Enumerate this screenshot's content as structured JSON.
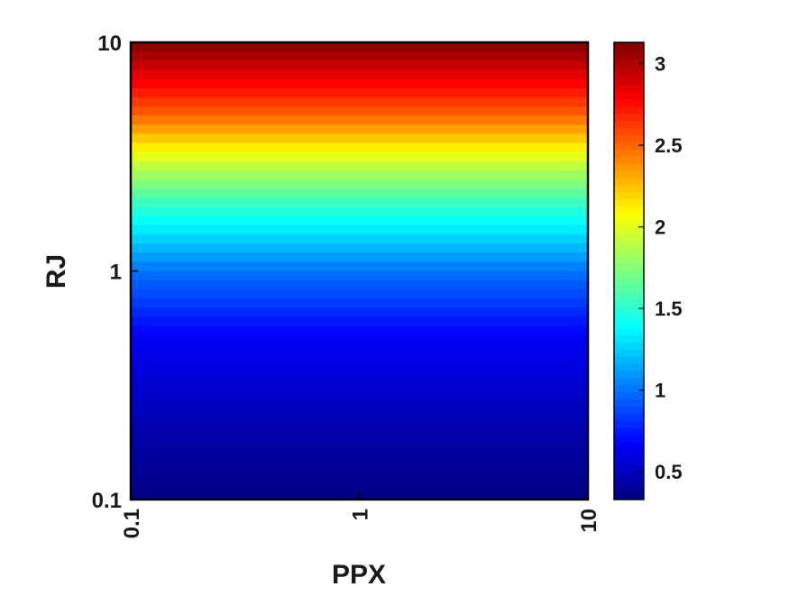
{
  "chart_data": {
    "type": "heatmap",
    "title": "",
    "xlabel": "PPX",
    "ylabel": "RJ",
    "x_scale": "log",
    "y_scale": "log",
    "xlim": [
      0.1,
      10
    ],
    "ylim": [
      0.1,
      10
    ],
    "x_ticks": [
      "0.1",
      "1",
      "10"
    ],
    "y_ticks": [
      "0.1",
      "1",
      "10"
    ],
    "colormap": "jet",
    "colorbar": {
      "lim": [
        0.33,
        3.13
      ],
      "ticks": [
        "0.5",
        "1",
        "1.5",
        "2",
        "2.5",
        "3"
      ],
      "tick_values": [
        0.5,
        1,
        1.5,
        2,
        2.5,
        3
      ],
      "placement": "right"
    },
    "value_depends_on": "y",
    "y_values": [
      0.1,
      0.2,
      0.5,
      1,
      2,
      3,
      5,
      10
    ],
    "z_values": [
      0.34,
      0.45,
      0.65,
      1.0,
      1.55,
      1.95,
      2.55,
      3.13
    ],
    "grid": false
  }
}
